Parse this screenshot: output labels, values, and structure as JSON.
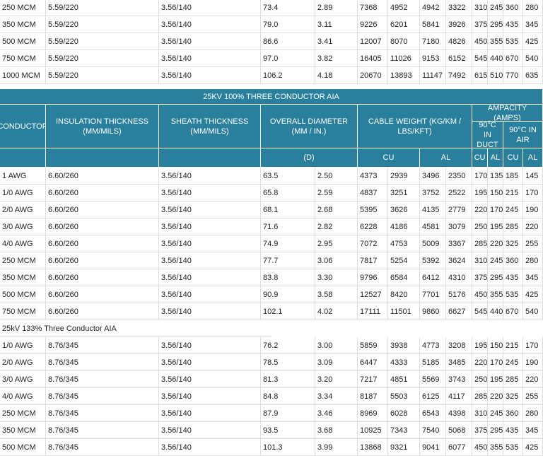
{
  "top_rows": [
    [
      "250 MCM",
      "5.59/220",
      "3.56/140",
      "73.4",
      "2.89",
      "7368",
      "4952",
      "4942",
      "3322",
      "310",
      "245",
      "360",
      "280"
    ],
    [
      "350 MCM",
      "5.59/220",
      "3.56/140",
      "79.0",
      "3.11",
      "9226",
      "6201",
      "5841",
      "3926",
      "375",
      "295",
      "435",
      "345"
    ],
    [
      "500 MCM",
      "5.59/220",
      "3.56/140",
      "86.6",
      "3.41",
      "12007",
      "8070",
      "7180",
      "4826",
      "450",
      "355",
      "535",
      "425"
    ],
    [
      "750 MCM",
      "5.59/220",
      "3.56/140",
      "97.0",
      "3.82",
      "16405",
      "11026",
      "9153",
      "6152",
      "545",
      "440",
      "670",
      "540"
    ],
    [
      "1000 MCM",
      "5.59/220",
      "3.56/140",
      "106.2",
      "4.18",
      "20670",
      "13893",
      "11147",
      "7492",
      "615",
      "510",
      "770",
      "635"
    ]
  ],
  "table": {
    "title": "25KV 100% THREE CONDUCTOR AIA",
    "headers": [
      "CONDUCTOR",
      "INSULATION THICKNESS (MM/MILS)",
      "SHEATH THICKNESS (MM/MILS)",
      "OVERALL DIAMETER (MM / IN.)",
      "CABLE WEIGHT (KG/KM / LBS/KFT)",
      "AMPACITY (AMPS)",
      "90°C IN DUCT",
      "90°C IN AIR"
    ],
    "subheaders": [
      "(D)",
      "CU",
      "AL",
      "CU",
      "AL",
      "CU",
      "AL"
    ],
    "rows": [
      [
        "1 AWG",
        "6.60/260",
        "3.56/140",
        "63.5",
        "2.50",
        "4373",
        "2939",
        "3496",
        "2350",
        "170",
        "135",
        "185",
        "145"
      ],
      [
        "1/0 AWG",
        "6.60/260",
        "3.56/140",
        "65.8",
        "2.59",
        "4837",
        "3251",
        "3752",
        "2522",
        "195",
        "150",
        "215",
        "170"
      ],
      [
        "2/0 AWG",
        "6.60/260",
        "3.56/140",
        "68.1",
        "2.68",
        "5395",
        "3626",
        "4135",
        "2779",
        "220",
        "170",
        "245",
        "190"
      ],
      [
        "3/0 AWG",
        "6.60/260",
        "3.56/140",
        "71.6",
        "2.82",
        "6228",
        "4186",
        "4581",
        "3079",
        "250",
        "195",
        "285",
        "220"
      ],
      [
        "4/0 AWG",
        "6.60/260",
        "3.56/140",
        "74.9",
        "2.95",
        "7072",
        "4753",
        "5009",
        "3367",
        "285",
        "220",
        "325",
        "255"
      ],
      [
        "250 MCM",
        "6.60/260",
        "3.56/140",
        "77.7",
        "3.06",
        "7817",
        "5254",
        "5392",
        "3624",
        "310",
        "245",
        "360",
        "280"
      ],
      [
        "350 MCM",
        "6.60/260",
        "3.56/140",
        "83.8",
        "3.30",
        "9796",
        "6584",
        "6412",
        "4310",
        "375",
        "295",
        "435",
        "345"
      ],
      [
        "500 MCM",
        "6.60/260",
        "3.56/140",
        "90.9",
        "3.58",
        "12527",
        "8420",
        "7701",
        "5176",
        "450",
        "355",
        "535",
        "425"
      ],
      [
        "750 MCM",
        "6.60/260",
        "3.56/140",
        "102.1",
        "4.02",
        "17111",
        "11501",
        "9860",
        "6627",
        "545",
        "440",
        "670",
        "540"
      ]
    ],
    "section_label": "25kV 133% Three Conductor AIA",
    "section_rows": [
      [
        "1/0 AWG",
        "8.76/345",
        "3.56/140",
        "76.2",
        "3.00",
        "5859",
        "3938",
        "4773",
        "3208",
        "195",
        "150",
        "215",
        "170"
      ],
      [
        "2/0 AWG",
        "8.76/345",
        "3.56/140",
        "78.5",
        "3.09",
        "6447",
        "4333",
        "5185",
        "3485",
        "220",
        "170",
        "245",
        "190"
      ],
      [
        "3/0 AWG",
        "8.76/345",
        "3.56/140",
        "81.3",
        "3.20",
        "7217",
        "4851",
        "5569",
        "3743",
        "250",
        "195",
        "285",
        "220"
      ],
      [
        "4/0 AWG",
        "8.76/345",
        "3.56/140",
        "84.8",
        "3.34",
        "8187",
        "5503",
        "6125",
        "4117",
        "285",
        "220",
        "325",
        "255"
      ],
      [
        "250 MCM",
        "8.76/345",
        "3.56/140",
        "87.9",
        "3.46",
        "8969",
        "6028",
        "6543",
        "4398",
        "310",
        "245",
        "360",
        "280"
      ],
      [
        "350 MCM",
        "8.76/345",
        "3.56/140",
        "93.5",
        "3.68",
        "10925",
        "7343",
        "7540",
        "5068",
        "375",
        "295",
        "435",
        "345"
      ],
      [
        "500 MCM",
        "8.76/345",
        "3.56/140",
        "101.3",
        "3.99",
        "13868",
        "9321",
        "9041",
        "6077",
        "450",
        "355",
        "535",
        "425"
      ]
    ]
  }
}
